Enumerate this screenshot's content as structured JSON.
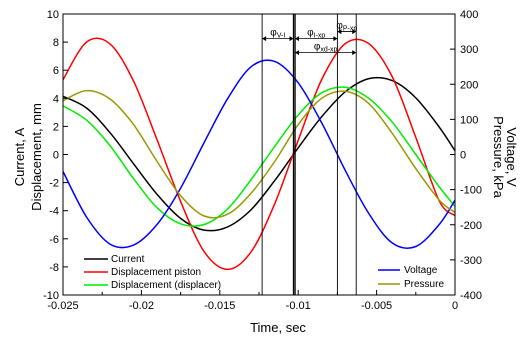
{
  "chart_data": {
    "type": "line",
    "title": "",
    "xlabel": "Time, sec",
    "ylabel_left": [
      "Current, A",
      "Displacement, mm"
    ],
    "ylabel_right": [
      "Voltage, V",
      "Pressure, kPa"
    ],
    "xlim": [
      -0.025,
      0
    ],
    "ylim_left": [
      -10,
      10
    ],
    "ylim_right": [
      -400,
      400
    ],
    "x_ticks": [
      -0.025,
      -0.02,
      -0.015,
      -0.01,
      -0.005,
      0
    ],
    "x_tick_labels": [
      "-0.025",
      "-0.02",
      "-0.015",
      "-0.01",
      "-0.005",
      "0"
    ],
    "y_left_ticks": [
      -10,
      -8,
      -6,
      -4,
      -2,
      0,
      2,
      4,
      6,
      8,
      10
    ],
    "y_left_tick_labels": [
      "-10",
      "-8",
      "-6",
      "-4",
      "-2",
      "0",
      "2",
      "4",
      "6",
      "8",
      "10"
    ],
    "y_right_ticks": [
      -400,
      -300,
      -200,
      -100,
      0,
      100,
      200,
      300,
      400
    ],
    "y_right_tick_labels": [
      "-400",
      "-300",
      "-200",
      "-100",
      "0",
      "100",
      "200",
      "300",
      "400"
    ],
    "grid": false,
    "legend_left_placement": "bottom-left",
    "legend_right_placement": "bottom-right",
    "series": [
      {
        "name": "Current",
        "axis": "left",
        "color": "#000000",
        "x": [
          -0.025,
          -0.0235,
          -0.022,
          -0.0205,
          -0.019,
          -0.0175,
          -0.016,
          -0.0145,
          -0.013,
          -0.0115,
          -0.01,
          -0.0085,
          -0.007,
          -0.0055,
          -0.004,
          -0.0025,
          -0.001,
          0
        ],
        "y": [
          4.14,
          3.31,
          1.55,
          -0.66,
          -2.84,
          -4.55,
          -5.38,
          -5.15,
          -3.92,
          -1.86,
          0.48,
          2.69,
          4.46,
          5.4,
          5.26,
          4.03,
          1.94,
          0.26
        ]
      },
      {
        "name": "Displacement piston",
        "axis": "left",
        "color": "#ff0000",
        "x": [
          -0.025,
          -0.0235,
          -0.022,
          -0.0205,
          -0.019,
          -0.0175,
          -0.016,
          -0.0145,
          -0.013,
          -0.0115,
          -0.01,
          -0.0085,
          -0.007,
          -0.0055,
          -0.004,
          -0.0025,
          -0.001,
          0
        ],
        "y": [
          5.32,
          8.0,
          7.87,
          5.22,
          1.04,
          -3.34,
          -6.91,
          -8.18,
          -6.92,
          -3.51,
          1.01,
          5.34,
          7.89,
          7.89,
          5.52,
          1.22,
          -3.32,
          -4.35
        ]
      },
      {
        "name": "Displacement (displacer)",
        "axis": "left",
        "color": "#00ee00",
        "x": [
          -0.025,
          -0.0235,
          -0.022,
          -0.0205,
          -0.019,
          -0.0175,
          -0.016,
          -0.0145,
          -0.013,
          -0.0115,
          -0.01,
          -0.0085,
          -0.007,
          -0.0055,
          -0.004,
          -0.0025,
          -0.001,
          0
        ],
        "y": [
          3.46,
          2.45,
          0.63,
          -1.72,
          -3.79,
          -4.93,
          -4.98,
          -3.87,
          -1.78,
          0.58,
          2.81,
          4.39,
          4.78,
          3.99,
          2.3,
          0.0,
          -2.31,
          -3.7
        ]
      },
      {
        "name": "Voltage",
        "axis": "right",
        "color": "#0000ff",
        "x": [
          -0.025,
          -0.0235,
          -0.022,
          -0.0205,
          -0.019,
          -0.0175,
          -0.016,
          -0.0145,
          -0.013,
          -0.0115,
          -0.01,
          -0.0085,
          -0.007,
          -0.0055,
          -0.004,
          -0.0025,
          -0.001,
          0
        ],
        "y": [
          -48,
          -178,
          -255,
          -258,
          -199,
          -96,
          34,
          159,
          250,
          265,
          204,
          90,
          -45,
          -168,
          -252,
          -262,
          -199,
          -130
        ]
      },
      {
        "name": "Pressure",
        "axis": "right",
        "color": "#999900",
        "x": [
          -0.025,
          -0.0235,
          -0.022,
          -0.0205,
          -0.019,
          -0.0175,
          -0.016,
          -0.0145,
          -0.013,
          -0.0115,
          -0.01,
          -0.0085,
          -0.007,
          -0.0055,
          -0.004,
          -0.0025,
          -0.001,
          0
        ],
        "y": [
          153,
          182,
          158,
          85,
          -20,
          -117,
          -175,
          -170,
          -110,
          -20,
          85,
          160,
          180,
          145,
          60,
          -40,
          -130,
          -165
        ]
      }
    ],
    "vertical_markers": [
      -0.0123,
      -0.0103,
      -0.0102,
      -0.0075,
      -0.0063
    ],
    "annotations": [
      {
        "text": "φ",
        "sub": "V-I",
        "from": -0.0123,
        "to": -0.0103,
        "y_right": 330
      },
      {
        "text": "φ",
        "sub": "I-xp",
        "from": -0.0102,
        "to": -0.0075,
        "y_right": 330
      },
      {
        "text": "φ",
        "sub": "P-xp",
        "from": -0.0075,
        "to": -0.0063,
        "y_right": 350
      },
      {
        "text": "φ",
        "sub": "xd-xp",
        "from": -0.0102,
        "to": -0.0063,
        "y_right": 290
      }
    ]
  }
}
